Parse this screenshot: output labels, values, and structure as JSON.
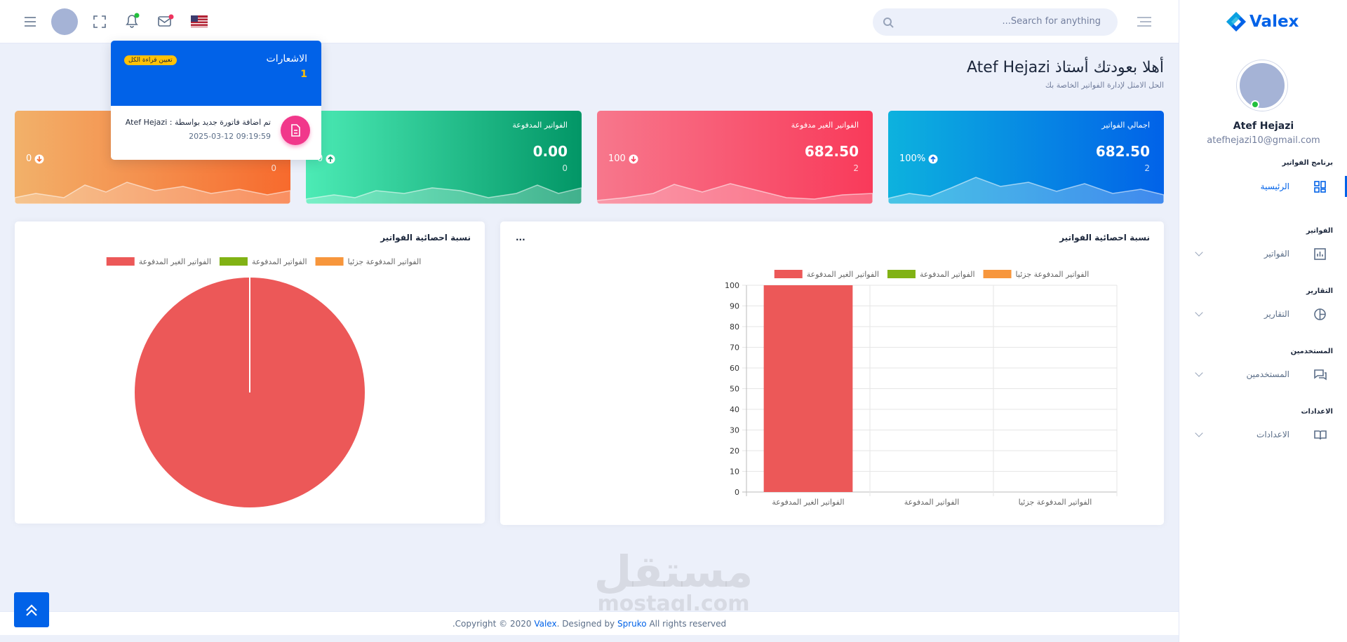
{
  "header": {
    "search_placeholder": "...Search for anything"
  },
  "notifications": {
    "title": "الاشعارات",
    "count": 1,
    "mark_all": "تعيين قراءة الكل",
    "items": [
      {
        "text": "تم اضافة فاتورة جديد بواسطة : Atef Hejazi",
        "time": "2025-03-12 09:19:59"
      }
    ]
  },
  "welcome": {
    "title": "أهلا بعودتك أستاذ Atef Hejazi",
    "subtitle": "الحل الامثل لإدارة الفواتير الخاصة بك"
  },
  "cards": [
    {
      "title": "اجمالي الفواتير",
      "value": "682.50",
      "count": 2,
      "change": "100%"
    },
    {
      "title": "الفواتير الغير مدفوعة",
      "value": "682.50",
      "count": 2,
      "change": 100
    },
    {
      "title": "الفواتير المدفوعة",
      "value": "0.00",
      "count": 0,
      "change": 0
    },
    {
      "count": 0,
      "change": 0
    }
  ],
  "sidebar": {
    "brand": "Valex",
    "user_name": "Atef Hejazi",
    "email": "atefhejazi10@gmail.com",
    "sections": [
      {
        "heading": "برنامج الفواتير",
        "item": "الرئيسية"
      },
      {
        "heading": "الفواتير",
        "item": "الفواتير"
      },
      {
        "heading": "التقارير",
        "item": "التقارير"
      },
      {
        "heading": "المستخدمين",
        "item": "المستخدمين"
      },
      {
        "heading": "الاعدادات",
        "item": "الاعدادات"
      }
    ]
  },
  "charts": [
    {
      "type": "pie",
      "title": "نسبة احصائية الفواتير",
      "categories": [
        "الفواتير الغير المدفوعة",
        "الفواتير المدفوعة",
        "الفواتير المدفوعة جزئيا"
      ],
      "values": [
        100,
        0,
        0
      ],
      "colors": [
        "#ec5858",
        "#81b214",
        "#f7963c"
      ],
      "legend": "top"
    },
    {
      "type": "bar",
      "title": "نسبة احصائية الفواتير",
      "menu": "...",
      "categories": [
        "الفواتير الغير المدفوعة",
        "الفواتير المدفوعة",
        "الفواتير المدفوعة جزئيا"
      ],
      "values": [
        100,
        0,
        0
      ],
      "colors": [
        "#ec5858",
        "#81b214",
        "#f7963c"
      ],
      "ylim": [
        0,
        100
      ],
      "yticks": [
        0,
        10,
        20,
        30,
        40,
        50,
        60,
        70,
        80,
        90,
        100
      ],
      "grid": true,
      "legend": "top"
    }
  ],
  "watermark": {
    "arabic": "مستقل",
    "latin": "mostaql.com"
  },
  "footer": {
    "copyright": ".Copyright © 2020",
    "brand": "Valex",
    "designed": ". Designed by",
    "company": "Spruko",
    "rights": "All rights reserved"
  }
}
